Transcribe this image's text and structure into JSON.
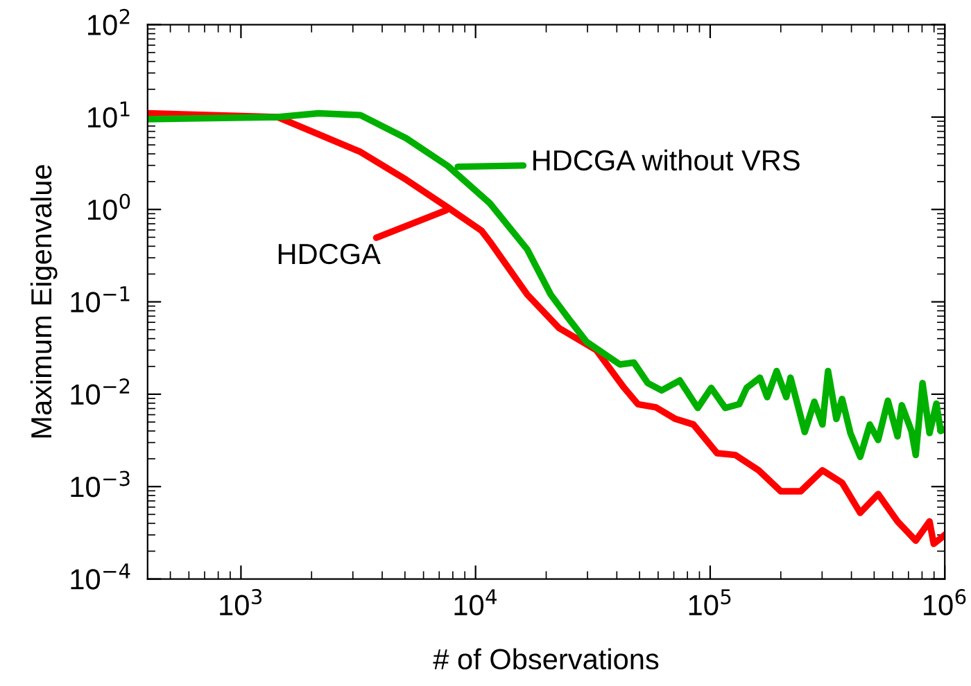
{
  "chart_data": {
    "type": "line",
    "xlabel": "# of Observations",
    "ylabel": "Maximum Eigenvalue",
    "log": "xy",
    "grid": false,
    "marker": "none",
    "line_style": "solid",
    "xlim": [
      400,
      1000000
    ],
    "ylim": [
      0.0001,
      100
    ],
    "xticks": [
      {
        "value": 1000,
        "label": "10$^{3}$"
      },
      {
        "value": 10000,
        "label": "10$^{4}$"
      },
      {
        "value": 100000,
        "label": "10$^{5}$"
      },
      {
        "value": 1000000,
        "label": "10$^{6}$"
      }
    ],
    "yticks": [
      {
        "value": 0.0001,
        "label": "10$^{−4}$"
      },
      {
        "value": 0.001,
        "label": "10$^{−3}$"
      },
      {
        "value": 0.01,
        "label": "10$^{−2}$"
      },
      {
        "value": 0.1,
        "label": "10$^{−1}$"
      },
      {
        "value": 1,
        "label": "10$^{0}$"
      },
      {
        "value": 10,
        "label": "10$^{1}$"
      },
      {
        "value": 100,
        "label": "10$^{2}$"
      }
    ],
    "series": [
      {
        "color": "#ff0000",
        "x": [
          400,
          1430,
          3230,
          5060,
          7620,
          10600,
          11500,
          16600,
          22700,
          32700,
          43000,
          49200,
          58800,
          71100,
          84900,
          107000,
          128000,
          161000,
          200000,
          243000,
          301000,
          365000,
          436000,
          520000,
          629000,
          752000,
          861000,
          897000,
          1000000
        ],
        "values": [
          11,
          10,
          4.2,
          2.1,
          1.05,
          0.59,
          0.45,
          0.12,
          0.052,
          0.03,
          0.0117,
          0.0078,
          0.0072,
          0.0054,
          0.0047,
          0.0023,
          0.0022,
          0.0015,
          0.00089,
          0.00089,
          0.0015,
          0.0011,
          0.00052,
          0.00083,
          0.00042,
          0.00026,
          0.00042,
          0.00024,
          0.0003
        ]
      },
      {
        "color": "#00b000",
        "x": [
          400,
          1430,
          2140,
          3230,
          5060,
          7620,
          11500,
          16600,
          20900,
          24900,
          29700,
          41200,
          47300,
          54200,
          62100,
          74200,
          88500,
          101000,
          116000,
          133000,
          143000,
          163000,
          175000,
          192000,
          211000,
          220000,
          253000,
          278000,
          301000,
          318000,
          345000,
          365000,
          396000,
          436000,
          479000,
          520000,
          572000,
          629000,
          656000,
          721000,
          752000,
          804000,
          861000,
          921000,
          960000,
          1000000
        ],
        "values": [
          9.5,
          10,
          11,
          10.5,
          5.9,
          2.95,
          1.17,
          0.37,
          0.12,
          0.066,
          0.037,
          0.021,
          0.022,
          0.0132,
          0.011,
          0.0141,
          0.0071,
          0.0117,
          0.0071,
          0.0078,
          0.0117,
          0.0151,
          0.0093,
          0.0178,
          0.0093,
          0.0151,
          0.0039,
          0.0083,
          0.0047,
          0.0178,
          0.0054,
          0.0089,
          0.0038,
          0.0021,
          0.0047,
          0.0032,
          0.0085,
          0.0035,
          0.0076,
          0.004,
          0.0022,
          0.0132,
          0.0038,
          0.0079,
          0.004,
          0.0042
        ]
      }
    ],
    "annotations": [
      {
        "text": "HDCGA",
        "x": 7500,
        "y": 0.98
      },
      {
        "text": "HDCGA without VRS",
        "x": 8400,
        "y": 2.9
      }
    ]
  }
}
